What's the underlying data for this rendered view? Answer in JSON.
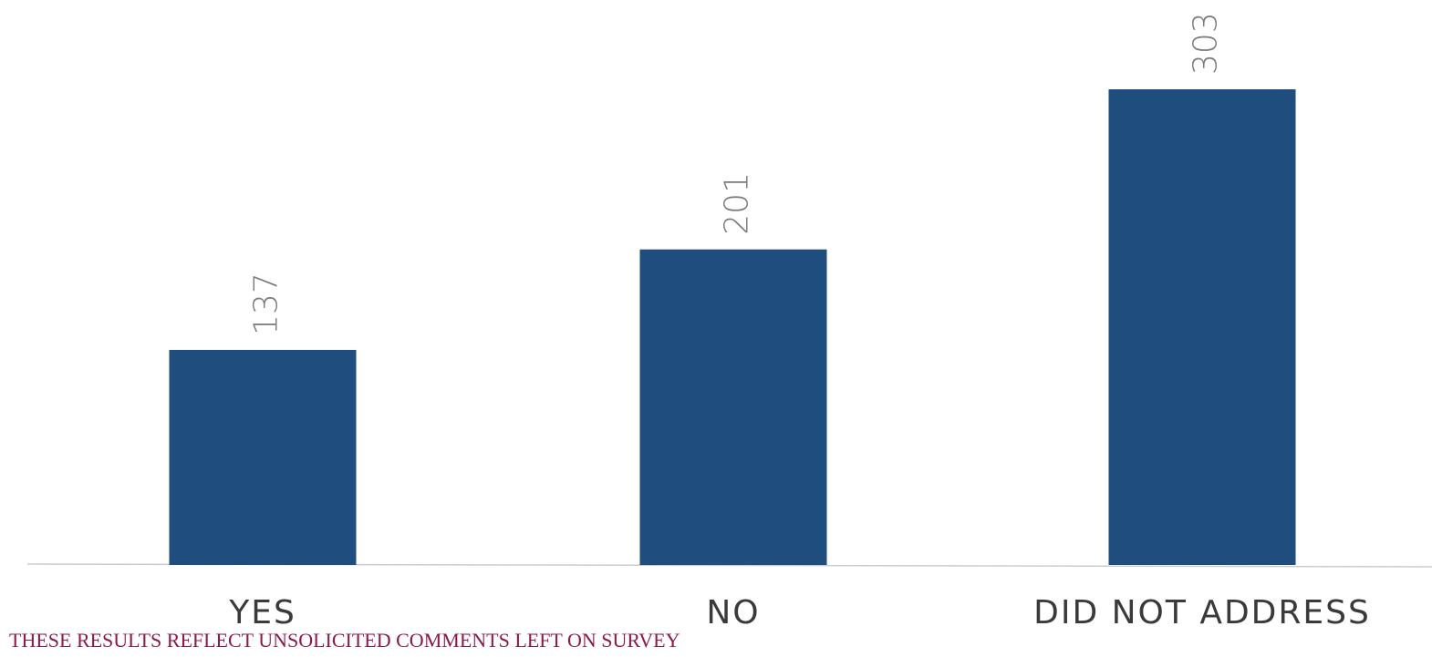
{
  "chart_data": {
    "type": "bar",
    "categories": [
      "YES",
      "NO",
      "DID NOT ADDRESS"
    ],
    "values": [
      137,
      201,
      303
    ],
    "value_labels": [
      "137",
      "201",
      "303"
    ],
    "title": "",
    "xlabel": "",
    "ylabel": "",
    "ylim": [
      0,
      303
    ],
    "grid": false,
    "legend": "none",
    "data_label_orientation": "rotated-vertical",
    "colors": {
      "bar": "#1f4e7e",
      "value_label": "#7a7a7a",
      "category_label": "#3a3a3a"
    }
  },
  "footnote": "THESE RESULTS REFLECT UNSOLICITED COMMENTS LEFT ON SURVEY",
  "colors": {
    "footnote": "#8b1a4a"
  }
}
